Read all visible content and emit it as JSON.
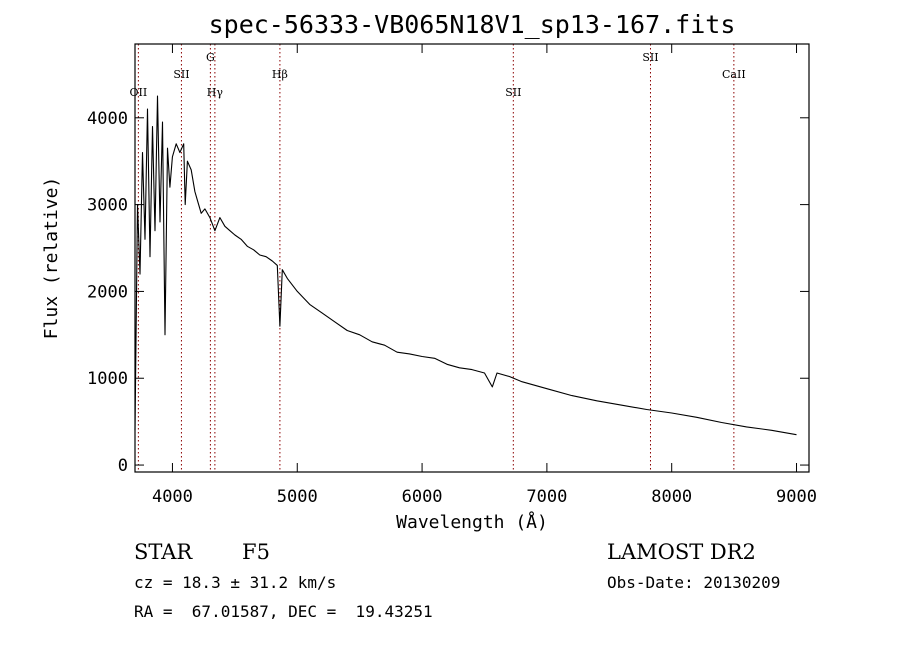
{
  "chart_data": {
    "type": "line",
    "title": "spec-56333-VB065N18V1_sp13-167.fits",
    "xlabel": "Wavelength (Å)",
    "ylabel": "Flux (relative)",
    "xlim": [
      3700,
      9100
    ],
    "ylim": [
      -80,
      4850
    ],
    "xticks": [
      4000,
      5000,
      6000,
      7000,
      8000,
      9000
    ],
    "yticks": [
      0,
      1000,
      2000,
      3000,
      4000
    ],
    "grid": false,
    "line_color": "#000000",
    "marker_color": "#8b0000",
    "series": [
      {
        "x": [
          3700,
          3720,
          3740,
          3760,
          3780,
          3800,
          3820,
          3840,
          3860,
          3880,
          3900,
          3920,
          3940,
          3960,
          3980,
          4000,
          4030,
          4060,
          4090,
          4102,
          4120,
          4150,
          4180,
          4200,
          4230,
          4260,
          4300,
          4340,
          4380,
          4420,
          4460,
          4500,
          4550,
          4600,
          4650,
          4700,
          4750,
          4800,
          4840,
          4861,
          4880,
          4920,
          5000,
          5100,
          5200,
          5300,
          5400,
          5500,
          5600,
          5700,
          5800,
          5900,
          6000,
          6100,
          6200,
          6300,
          6400,
          6500,
          6563,
          6600,
          6700,
          6800,
          6900,
          7000,
          7200,
          7400,
          7600,
          7800,
          8000,
          8200,
          8400,
          8600,
          8800,
          9000
        ],
        "y": [
          400,
          3000,
          2200,
          3600,
          2600,
          4100,
          2400,
          3900,
          2700,
          4250,
          2800,
          3950,
          1500,
          3650,
          3200,
          3550,
          3700,
          3600,
          3700,
          3000,
          3500,
          3400,
          3150,
          3050,
          2900,
          2950,
          2850,
          2700,
          2850,
          2750,
          2700,
          2650,
          2600,
          2520,
          2480,
          2420,
          2400,
          2350,
          2300,
          1600,
          2250,
          2150,
          2000,
          1850,
          1750,
          1650,
          1550,
          1500,
          1420,
          1380,
          1300,
          1280,
          1250,
          1230,
          1160,
          1120,
          1100,
          1060,
          900,
          1060,
          1020,
          960,
          920,
          880,
          800,
          740,
          690,
          640,
          600,
          550,
          490,
          440,
          400,
          350
        ]
      }
    ],
    "lines": [
      {
        "name": "OII",
        "wl": 3727,
        "row": 3
      },
      {
        "name": "SII",
        "wl": 4072,
        "row": 2
      },
      {
        "name": "G",
        "wl": 4304,
        "row": 1
      },
      {
        "name": "Hγ",
        "wl": 4340,
        "row": 3
      },
      {
        "name": "Hβ",
        "wl": 4861,
        "row": 2
      },
      {
        "name": "SII",
        "wl": 6731,
        "row": 3
      },
      {
        "name": "SII",
        "wl": 7830,
        "row": 1
      },
      {
        "name": "CaII",
        "wl": 8498,
        "row": 2
      }
    ]
  },
  "info": {
    "object_class": "STAR",
    "subclass": "F5",
    "cz": "cz = 18.3 ± 31.2 km/s",
    "coords": "RA =  67.01587, DEC =  19.43251",
    "survey": "LAMOST DR2",
    "obs_date": "Obs-Date: 20130209"
  }
}
